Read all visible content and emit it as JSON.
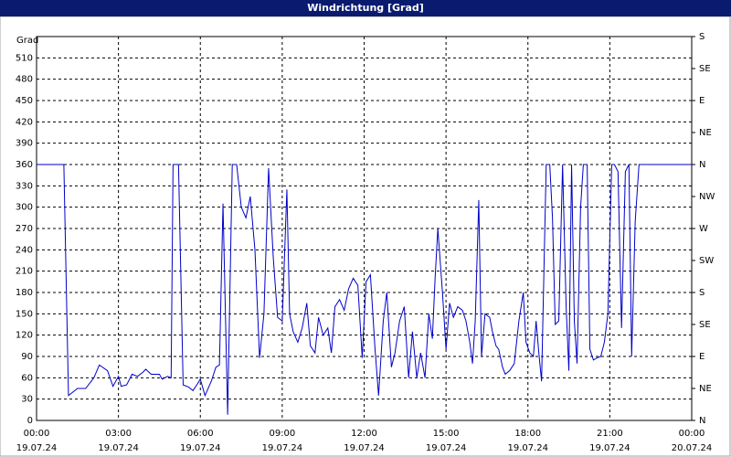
{
  "chart_data": {
    "type": "line",
    "title": "Windrichtung [Grad]",
    "y_label": "Grad",
    "color": "#0000c8",
    "grid": true,
    "xlim": [
      0,
      24
    ],
    "xticks": [
      {
        "value": 0,
        "label": "00:00",
        "sublabel": "19.07.24"
      },
      {
        "value": 3,
        "label": "03:00",
        "sublabel": "19.07.24"
      },
      {
        "value": 6,
        "label": "06:00",
        "sublabel": "19.07.24"
      },
      {
        "value": 9,
        "label": "09:00",
        "sublabel": "19.07.24"
      },
      {
        "value": 12,
        "label": "12:00",
        "sublabel": "19.07.24"
      },
      {
        "value": 15,
        "label": "15:00",
        "sublabel": "19.07.24"
      },
      {
        "value": 18,
        "label": "18:00",
        "sublabel": "19.07.24"
      },
      {
        "value": 21,
        "label": "21:00",
        "sublabel": "19.07.24"
      },
      {
        "value": 24,
        "label": "00:00",
        "sublabel": "20.07.24"
      }
    ],
    "ylim": [
      0,
      540
    ],
    "yticks": [
      0,
      30,
      60,
      90,
      120,
      150,
      180,
      210,
      240,
      270,
      300,
      330,
      360,
      390,
      420,
      450,
      480,
      510
    ],
    "y2lim": [
      0,
      540
    ],
    "y2ticks": [
      {
        "value": 0,
        "label": "N"
      },
      {
        "value": 45,
        "label": "NE"
      },
      {
        "value": 90,
        "label": "E"
      },
      {
        "value": 135,
        "label": "SE"
      },
      {
        "value": 180,
        "label": "S"
      },
      {
        "value": 225,
        "label": "SW"
      },
      {
        "value": 270,
        "label": "W"
      },
      {
        "value": 315,
        "label": "NW"
      },
      {
        "value": 360,
        "label": "N"
      },
      {
        "value": 405,
        "label": "NE"
      },
      {
        "value": 450,
        "label": "E"
      },
      {
        "value": 495,
        "label": "SE"
      },
      {
        "value": 540,
        "label": "S"
      }
    ],
    "x": [
      0,
      1.0,
      1.17,
      1.5,
      1.8,
      2.1,
      2.3,
      2.6,
      2.8,
      3.0,
      3.1,
      3.3,
      3.5,
      3.7,
      3.9,
      4.0,
      4.2,
      4.5,
      4.6,
      4.8,
      4.93,
      5.0,
      5.2,
      5.37,
      5.57,
      5.73,
      5.87,
      6.0,
      6.17,
      6.4,
      6.57,
      6.7,
      6.83,
      7.0,
      7.17,
      7.33,
      7.5,
      7.67,
      7.83,
      8.0,
      8.17,
      8.33,
      8.5,
      8.67,
      8.83,
      9.0,
      9.17,
      9.27,
      9.4,
      9.57,
      9.73,
      9.9,
      10.03,
      10.2,
      10.33,
      10.5,
      10.67,
      10.8,
      10.93,
      11.1,
      11.27,
      11.43,
      11.6,
      11.77,
      11.93,
      12.07,
      12.23,
      12.4,
      12.53,
      12.7,
      12.83,
      13.0,
      13.13,
      13.3,
      13.47,
      13.63,
      13.77,
      13.93,
      14.07,
      14.23,
      14.37,
      14.5,
      14.6,
      14.7,
      14.87,
      15.0,
      15.13,
      15.27,
      15.43,
      15.6,
      15.73,
      15.87,
      15.97,
      16.07,
      16.2,
      16.3,
      16.43,
      16.6,
      16.7,
      16.83,
      16.93,
      17.07,
      17.17,
      17.33,
      17.5,
      17.67,
      17.83,
      17.93,
      18.07,
      18.2,
      18.3,
      18.4,
      18.5,
      18.67,
      18.8,
      18.9,
      19.0,
      19.13,
      19.27,
      19.4,
      19.5,
      19.6,
      19.7,
      19.8,
      19.93,
      20.03,
      20.17,
      20.27,
      20.4,
      20.53,
      20.67,
      20.8,
      20.93,
      21.07,
      21.17,
      21.3,
      21.43,
      21.57,
      21.7,
      21.8,
      21.93,
      22.07,
      24
    ],
    "values": [
      360,
      360,
      35,
      45,
      45,
      60,
      78,
      70,
      48,
      62,
      48,
      50,
      65,
      62,
      68,
      72,
      65,
      65,
      58,
      62,
      60,
      360,
      360,
      50,
      47,
      42,
      50,
      58,
      35,
      55,
      75,
      78,
      305,
      8,
      360,
      360,
      300,
      285,
      315,
      240,
      88,
      150,
      355,
      230,
      145,
      140,
      325,
      150,
      125,
      110,
      130,
      165,
      105,
      95,
      145,
      120,
      130,
      95,
      160,
      170,
      155,
      185,
      200,
      190,
      88,
      195,
      205,
      100,
      35,
      140,
      180,
      75,
      95,
      140,
      160,
      60,
      125,
      60,
      95,
      60,
      150,
      115,
      200,
      270,
      180,
      100,
      165,
      145,
      160,
      155,
      140,
      110,
      80,
      140,
      310,
      90,
      150,
      145,
      125,
      105,
      100,
      75,
      65,
      70,
      80,
      140,
      180,
      110,
      95,
      90,
      140,
      95,
      55,
      360,
      360,
      285,
      135,
      140,
      360,
      160,
      70,
      360,
      140,
      80,
      300,
      360,
      360,
      100,
      85,
      88,
      90,
      110,
      150,
      360,
      360,
      350,
      130,
      350,
      360,
      90,
      280,
      360,
      360
    ]
  }
}
